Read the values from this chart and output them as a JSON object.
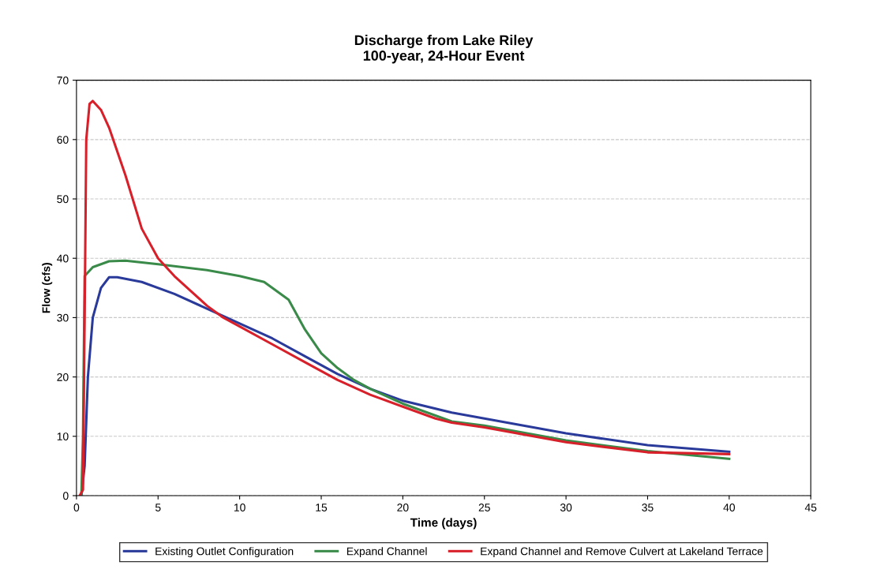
{
  "chart_data": {
    "type": "line",
    "title": "Discharge from Lake Riley\n100-year, 24-Hour Event",
    "xlabel": "Time (days)",
    "ylabel": "Flow (cfs)",
    "xlim": [
      0,
      45
    ],
    "xticks": [
      0,
      5,
      10,
      15,
      20,
      25,
      30,
      35,
      40,
      45
    ],
    "ylim": [
      0,
      70
    ],
    "yticks": [
      0,
      10,
      20,
      30,
      40,
      50,
      60,
      70
    ],
    "grid": "y",
    "legend": "bottom",
    "marker": "none",
    "line_style": "solid",
    "series": [
      {
        "name": "Existing Outlet Configuration",
        "color": "#2a3a9a",
        "x": [
          0.3,
          0.5,
          0.7,
          1,
          1.5,
          2,
          2.5,
          4,
          6,
          8,
          10,
          12,
          14,
          16,
          18,
          20,
          23,
          25,
          30,
          35,
          40
        ],
        "values": [
          0,
          5,
          20,
          30,
          35,
          36.8,
          36.8,
          36,
          34,
          31.5,
          29,
          26.5,
          23.5,
          20.5,
          18,
          16,
          14,
          13,
          10.5,
          8.5,
          7.4
        ]
      },
      {
        "name": "Expand Channel",
        "color": "#3a8a4a",
        "x": [
          0.3,
          0.4,
          0.5,
          1,
          2,
          3,
          5,
          8,
          10,
          11.5,
          12,
          13,
          14,
          15,
          16,
          17,
          18,
          20,
          22,
          23,
          25,
          30,
          35,
          40
        ],
        "values": [
          0,
          10,
          37,
          38.5,
          39.5,
          39.6,
          39,
          38,
          37,
          36,
          35,
          33,
          28,
          24,
          21.5,
          19.5,
          18,
          15.5,
          13.5,
          12.5,
          11.8,
          9.3,
          7.5,
          6.2
        ]
      },
      {
        "name": "Expand Channel and Remove Culvert at Lakeland Terrace",
        "color": "#d8202a",
        "x": [
          0.2,
          0.4,
          0.5,
          0.6,
          0.8,
          1,
          1.5,
          2,
          3,
          4,
          5,
          6,
          7,
          8,
          9,
          10,
          12,
          14,
          16,
          18,
          20,
          22,
          23,
          25,
          30,
          35,
          40
        ],
        "values": [
          0,
          1,
          30,
          60,
          66,
          66.5,
          65,
          62,
          54,
          45,
          40,
          37,
          34.5,
          32,
          30,
          28.5,
          25.5,
          22.5,
          19.5,
          17,
          15,
          13,
          12.3,
          11.5,
          9,
          7.3,
          7
        ]
      }
    ]
  }
}
